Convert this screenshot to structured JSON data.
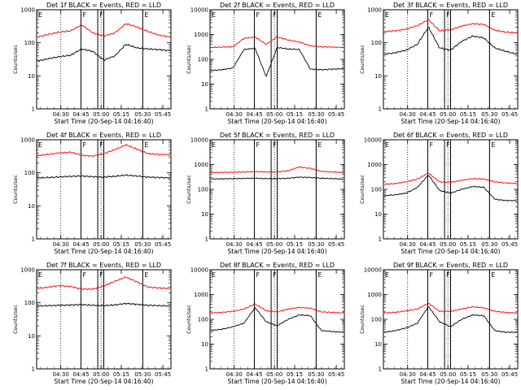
{
  "chart_data": [
    {
      "type": "line",
      "title": "Det 1f BLACK = Events, RED = LLD",
      "xlabel": "Start Time (20-Sep-14 04:16:40)",
      "ylabel": "Counts/sec",
      "yscale": "log",
      "ylim": [
        1,
        1000
      ],
      "y_tick_labels": [
        "1",
        "10",
        "100",
        "1000"
      ],
      "x_tick_labels": [
        "04:30",
        "04:45",
        "05:00",
        "05:15",
        "05:30",
        "05:45"
      ],
      "markers": [
        "E",
        "F",
        "F",
        "E"
      ],
      "series": [
        {
          "name": "BLACK = Events",
          "color": "#000000",
          "values": [
            28,
            33,
            38,
            42,
            65,
            55,
            30,
            40,
            90,
            70,
            65,
            62,
            58
          ]
        },
        {
          "name": "RED = LLD",
          "color": "#ff0000",
          "values": [
            150,
            180,
            210,
            230,
            350,
            200,
            160,
            200,
            380,
            300,
            220,
            170,
            150
          ]
        }
      ]
    },
    {
      "type": "line",
      "title": "Det 2f BLACK = Events, RED = LLD",
      "xlabel": "Start Time (20-Sep-14 04:16:40)",
      "ylabel": "Counts/sec",
      "yscale": "log",
      "ylim": [
        1,
        10000
      ],
      "y_tick_labels": [
        "1",
        "10",
        "100",
        "1000",
        "10000"
      ],
      "x_tick_labels": [
        "04:30",
        "04:45",
        "05:00",
        "05:15",
        "05:30",
        "05:45"
      ],
      "markers": [
        "E",
        "F",
        "F",
        "E"
      ],
      "series": [
        {
          "name": "BLACK = Events",
          "color": "#000000",
          "values": [
            35,
            38,
            45,
            250,
            280,
            20,
            300,
            260,
            250,
            40,
            38,
            40,
            42
          ]
        },
        {
          "name": "RED = LLD",
          "color": "#ff0000",
          "values": [
            300,
            310,
            320,
            700,
            800,
            400,
            800,
            600,
            500,
            350,
            320,
            310,
            300
          ]
        }
      ]
    },
    {
      "type": "line",
      "title": "Det 3f BLACK = Events, RED = LLD",
      "xlabel": "Start Time (20-Sep-14 04:16:40)",
      "ylabel": "Counts/sec",
      "yscale": "log",
      "ylim": [
        1,
        1000
      ],
      "y_tick_labels": [
        "1",
        "10",
        "100",
        "1000"
      ],
      "x_tick_labels": [
        "04:30",
        "04:45",
        "05:00",
        "05:15",
        "05:30",
        "05:45"
      ],
      "markers": [
        "E",
        "F",
        "F",
        "E"
      ],
      "series": [
        {
          "name": "BLACK = Events",
          "color": "#000000",
          "values": [
            45,
            50,
            60,
            90,
            300,
            70,
            60,
            110,
            160,
            140,
            70,
            55,
            45
          ]
        },
        {
          "name": "RED = LLD",
          "color": "#ff0000",
          "values": [
            220,
            230,
            260,
            330,
            500,
            230,
            250,
            320,
            380,
            360,
            240,
            210,
            200
          ]
        }
      ]
    },
    {
      "type": "line",
      "title": "Det 4f BLACK = Events, RED = LLD",
      "xlabel": "Start Time (20-Sep-14 04:16:40)",
      "ylabel": "Counts/sec",
      "yscale": "log",
      "ylim": [
        1,
        1000
      ],
      "y_tick_labels": [
        "1",
        "10",
        "100",
        "1000"
      ],
      "x_tick_labels": [
        "04:30",
        "04:45",
        "05:00",
        "05:15",
        "05:30",
        "05:45"
      ],
      "markers": [
        "E",
        "F",
        "F",
        "E"
      ],
      "series": [
        {
          "name": "BLACK = Events",
          "color": "#000000",
          "values": [
            70,
            72,
            75,
            78,
            80,
            76,
            74,
            78,
            85,
            80,
            74,
            72,
            70
          ]
        },
        {
          "name": "RED = LLD",
          "color": "#ff0000",
          "values": [
            330,
            360,
            400,
            420,
            340,
            320,
            380,
            500,
            700,
            520,
            380,
            360,
            350
          ]
        }
      ]
    },
    {
      "type": "line",
      "title": "Det 5f BLACK = Events, RED = LLD",
      "xlabel": "Start Time (20-Sep-14 04:16:40)",
      "ylabel": "Counts/sec",
      "yscale": "log",
      "ylim": [
        1,
        10000
      ],
      "y_tick_labels": [
        "1",
        "10",
        "100",
        "1000",
        "10000"
      ],
      "x_tick_labels": [
        "04:30",
        "04:45",
        "05:00",
        "05:15",
        "05:30",
        "05:45"
      ],
      "markers": [
        "E",
        "F",
        "F",
        "E"
      ],
      "series": [
        {
          "name": "BLACK = Events",
          "color": "#000000",
          "values": [
            260,
            265,
            270,
            275,
            280,
            270,
            270,
            280,
            310,
            300,
            280,
            270,
            260
          ]
        },
        {
          "name": "RED = LLD",
          "color": "#ff0000",
          "values": [
            470,
            480,
            490,
            500,
            520,
            500,
            500,
            560,
            800,
            700,
            530,
            500,
            480
          ]
        }
      ]
    },
    {
      "type": "line",
      "title": "Det 6f BLACK = Events, RED = LLD",
      "xlabel": "Start Time (20-Sep-14 04:16:40)",
      "ylabel": "Counts/sec",
      "yscale": "log",
      "ylim": [
        1,
        10000
      ],
      "y_tick_labels": [
        "1",
        "10",
        "100",
        "1000",
        "10000"
      ],
      "x_tick_labels": [
        "04:30",
        "04:45",
        "05:00",
        "05:15",
        "05:30",
        "05:45"
      ],
      "markers": [
        "E",
        "F",
        "F",
        "E"
      ],
      "series": [
        {
          "name": "BLACK = Events",
          "color": "#000000",
          "values": [
            55,
            60,
            70,
            120,
            380,
            90,
            70,
            100,
            130,
            120,
            40,
            35,
            35
          ]
        },
        {
          "name": "RED = LLD",
          "color": "#ff0000",
          "values": [
            160,
            170,
            200,
            260,
            450,
            200,
            190,
            230,
            270,
            260,
            200,
            180,
            170
          ]
        }
      ]
    },
    {
      "type": "line",
      "title": "Det 7f BLACK = Events, RED = LLD",
      "xlabel": "Start Time (20-Sep-14 04:16:40)",
      "ylabel": "Counts/sec",
      "yscale": "log",
      "ylim": [
        1,
        1000
      ],
      "y_tick_labels": [
        "1",
        "10",
        "100",
        "1000"
      ],
      "x_tick_labels": [
        "04:30",
        "04:45",
        "05:00",
        "05:15",
        "05:30",
        "05:45"
      ],
      "markers": [
        "E",
        "F",
        "F",
        "E"
      ],
      "series": [
        {
          "name": "BLACK = Events",
          "color": "#000000",
          "values": [
            80,
            82,
            84,
            86,
            88,
            84,
            82,
            86,
            95,
            90,
            84,
            82,
            80
          ]
        },
        {
          "name": "RED = LLD",
          "color": "#ff0000",
          "values": [
            270,
            300,
            330,
            310,
            260,
            260,
            320,
            450,
            600,
            430,
            300,
            280,
            270
          ]
        }
      ]
    },
    {
      "type": "line",
      "title": "Det 8f BLACK = Events, RED = LLD",
      "xlabel": "Start Time (20-Sep-14 04:16:40)",
      "ylabel": "Counts/sec",
      "yscale": "log",
      "ylim": [
        1,
        10000
      ],
      "y_tick_labels": [
        "1",
        "10",
        "100",
        "1000",
        "10000"
      ],
      "x_tick_labels": [
        "04:30",
        "04:45",
        "05:00",
        "05:15",
        "05:30",
        "05:45"
      ],
      "markers": [
        "E",
        "F",
        "F",
        "E"
      ],
      "series": [
        {
          "name": "BLACK = Events",
          "color": "#000000",
          "values": [
            35,
            40,
            50,
            70,
            300,
            80,
            55,
            100,
            150,
            140,
            35,
            32,
            30
          ]
        },
        {
          "name": "RED = LLD",
          "color": "#ff0000",
          "values": [
            180,
            190,
            210,
            260,
            420,
            220,
            200,
            260,
            300,
            280,
            200,
            190,
            180
          ]
        }
      ]
    },
    {
      "type": "line",
      "title": "Det 9f BLACK = Events, RED = LLD",
      "xlabel": "Start Time (20-Sep-14 04:16:40)",
      "ylabel": "Counts/sec",
      "yscale": "log",
      "ylim": [
        1,
        10000
      ],
      "y_tick_labels": [
        "1",
        "10",
        "100",
        "1000",
        "10000"
      ],
      "x_tick_labels": [
        "04:30",
        "04:45",
        "05:00",
        "05:15",
        "05:30",
        "05:45"
      ],
      "markers": [
        "E",
        "F",
        "F",
        "E"
      ],
      "series": [
        {
          "name": "BLACK = Events",
          "color": "#000000",
          "values": [
            30,
            35,
            45,
            70,
            330,
            80,
            50,
            100,
            150,
            140,
            35,
            30,
            30
          ]
        },
        {
          "name": "RED = LLD",
          "color": "#ff0000",
          "values": [
            180,
            190,
            220,
            260,
            450,
            210,
            210,
            260,
            320,
            290,
            210,
            190,
            180
          ]
        }
      ]
    }
  ]
}
